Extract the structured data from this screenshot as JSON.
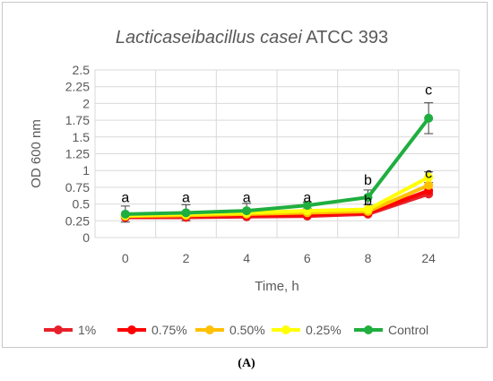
{
  "chart_data": {
    "type": "line",
    "title_italic": "Lacticaseibacillus casei",
    "title_rest": " ATCC 393",
    "xlabel": "Time, h",
    "ylabel": "OD 600 nm",
    "categories": [
      "0",
      "2",
      "4",
      "6",
      "8",
      "24"
    ],
    "ylim": [
      0,
      2.5
    ],
    "yticks": [
      "0",
      "0.25",
      "0.5",
      "0.75",
      "1",
      "1.25",
      "1.5",
      "1.75",
      "2",
      "2.25",
      "2.5"
    ],
    "grid": true,
    "legend_position": "bottom",
    "series": [
      {
        "name": "1%",
        "color": "#e8202a",
        "values": [
          0.3,
          0.3,
          0.31,
          0.32,
          0.35,
          0.65
        ]
      },
      {
        "name": "0.75%",
        "color": "#ff0000",
        "values": [
          0.31,
          0.32,
          0.33,
          0.34,
          0.37,
          0.7
        ]
      },
      {
        "name": "0.50%",
        "color": "#ffc000",
        "values": [
          0.32,
          0.33,
          0.35,
          0.37,
          0.39,
          0.78
        ]
      },
      {
        "name": "0.25%",
        "color": "#ffff00",
        "values": [
          0.33,
          0.35,
          0.37,
          0.4,
          0.42,
          0.9
        ]
      },
      {
        "name": "Control",
        "color": "#1fae3f",
        "values": [
          0.35,
          0.37,
          0.4,
          0.48,
          0.6,
          1.78
        ]
      }
    ],
    "error_bars": [
      {
        "x": "0",
        "y": 0.35,
        "err": 0.12
      },
      {
        "x": "2",
        "y": 0.37,
        "err": 0.12
      },
      {
        "x": "4",
        "y": 0.4,
        "err": 0.11
      },
      {
        "x": "6",
        "y": 0.48,
        "err": 0.05
      },
      {
        "x": "8",
        "y": 0.6,
        "err": 0.11
      },
      {
        "x": "24",
        "y": 1.78,
        "err": 0.23
      },
      {
        "x": "24",
        "y": 0.9,
        "err": 0.08
      }
    ],
    "annotations": [
      {
        "x": "0",
        "y": 0.53,
        "text": "a"
      },
      {
        "x": "2",
        "y": 0.53,
        "text": "a"
      },
      {
        "x": "4",
        "y": 0.53,
        "text": "a"
      },
      {
        "x": "6",
        "y": 0.53,
        "text": "a"
      },
      {
        "x": "8",
        "y": 0.79,
        "text": "b"
      },
      {
        "x": "8",
        "y": 0.48,
        "text": "b"
      },
      {
        "x": "24",
        "y": 2.13,
        "text": "c"
      },
      {
        "x": "24",
        "y": 0.89,
        "text": "c"
      }
    ]
  },
  "caption": "(A)"
}
